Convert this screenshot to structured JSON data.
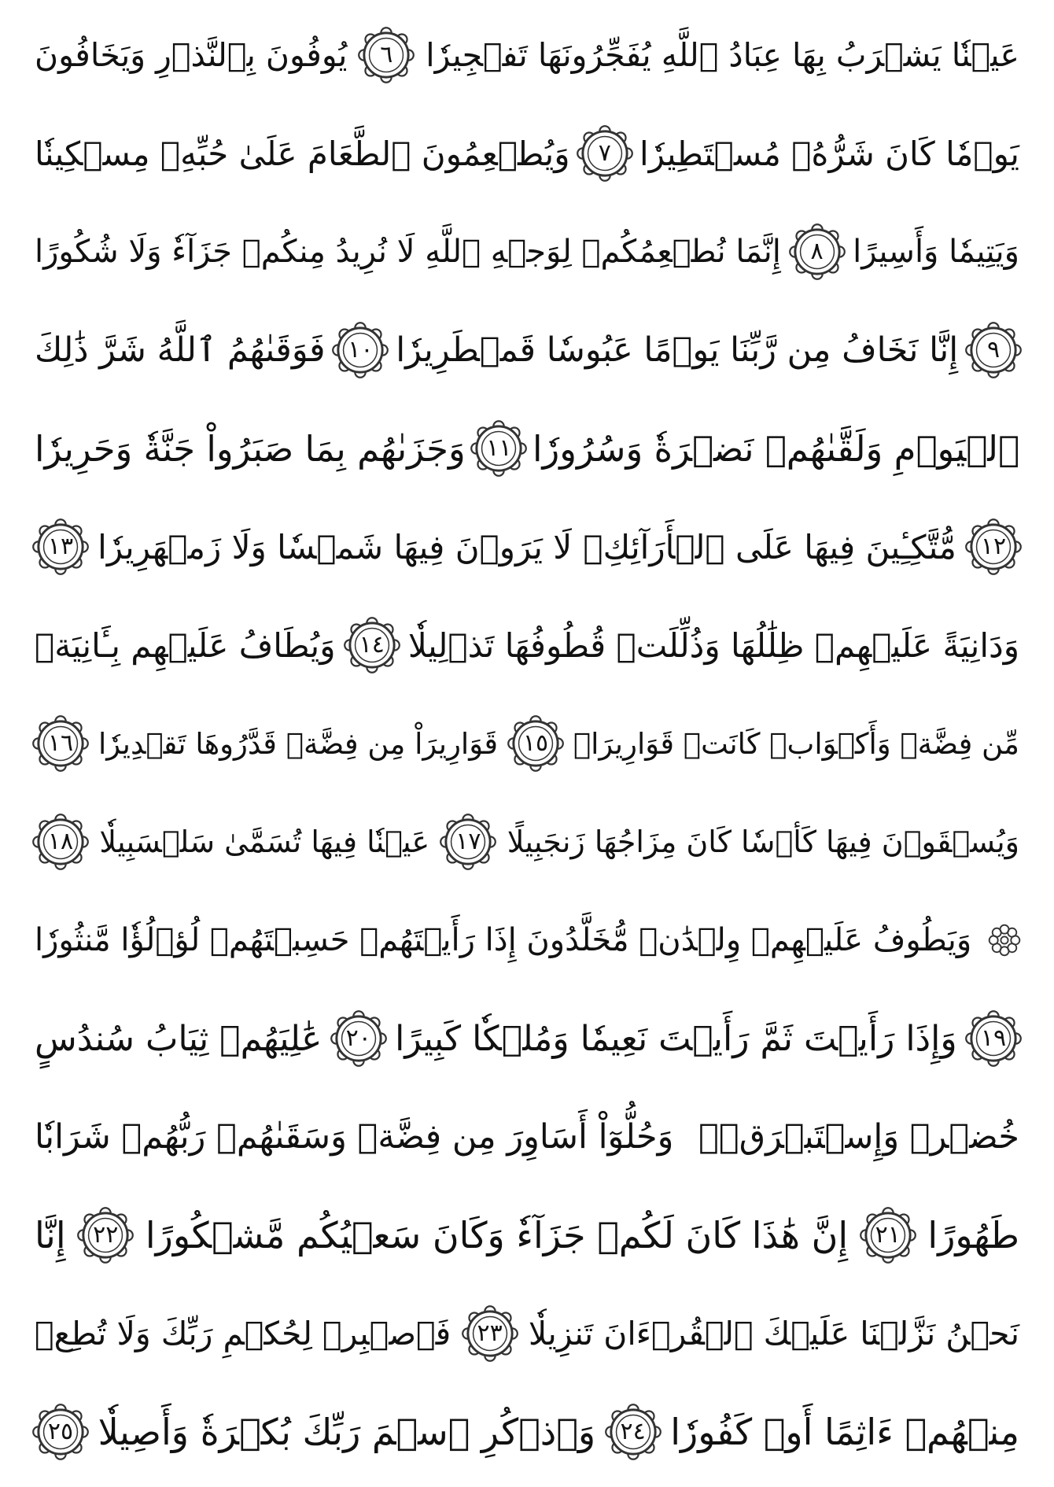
{
  "lines": [
    {
      "segments": [
        {
          "text": "عَيۡنٗا يَشۡرَبُ بِهَا عِبَادُ ٱللَّهِ يُفَجِّرُونَهَا تَفۡجِيرٗا"
        },
        {
          "ayah": "٦"
        },
        {
          "text": "يُوفُونَ بِٱلنَّذۡرِ وَيَخَافُونَ"
        }
      ]
    },
    {
      "segments": [
        {
          "text": "يَوۡمٗا كَانَ شَرُّهُۥ مُسۡتَطِيرٗا"
        },
        {
          "ayah": "٧"
        },
        {
          "text": "وَيُطۡعِمُونَ ٱلطَّعَامَ عَلَىٰ حُبِّهِۦ مِسۡكِينٗا"
        }
      ]
    },
    {
      "segments": [
        {
          "text": "وَيَتِيمٗا وَأَسِيرًا"
        },
        {
          "ayah": "٨"
        },
        {
          "text": "إِنَّمَا نُطۡعِمُكُمۡ لِوَجۡهِ ٱللَّهِ لَا نُرِيدُ مِنكُمۡ جَزَآءٗ وَلَا شُكُورًا"
        }
      ]
    },
    {
      "segments": [
        {
          "ayah": "٩"
        },
        {
          "text": "إِنَّا نَخَافُ مِن رَّبِّنَا يَوۡمًا عَبُوسٗا قَمۡطَرِيرٗا"
        },
        {
          "ayah": "١٠"
        },
        {
          "text": "فَوَقَىٰهُمُ ٱللَّهُ شَرَّ ذَٰلِكَ"
        }
      ]
    },
    {
      "segments": [
        {
          "text": "ٱلۡيَوۡمِ وَلَقَّىٰهُمۡ نَضۡرَةٗ وَسُرُورٗا"
        },
        {
          "ayah": "١١"
        },
        {
          "text": "وَجَزَىٰهُم بِمَا صَبَرُواْ جَنَّةٗ وَحَرِيرٗا"
        }
      ]
    },
    {
      "segments": [
        {
          "ayah": "١٢"
        },
        {
          "text": "مُّتَّكِـِٔينَ فِيهَا عَلَى ٱلۡأَرَآئِكِۖ"
        },
        {
          "text": "لَا يَرَوۡنَ فِيهَا شَمۡسٗا وَلَا زَمۡهَرِيرٗا"
        },
        {
          "ayah": "١٣"
        }
      ]
    },
    {
      "segments": [
        {
          "text": "وَدَانِيَةً عَلَيۡهِمۡ ظِلَٰلُهَا وَذُلِّلَتۡ قُطُوفُهَا تَذۡلِيلٗا"
        },
        {
          "ayah": "١٤"
        },
        {
          "text": "وَيُطَافُ عَلَيۡهِم بِـَٔانِيَةٖ"
        }
      ]
    },
    {
      "segments": [
        {
          "text": "مِّن فِضَّةٖ وَأَكۡوَابٖ كَانَتۡ قَوَارِيرَا۠"
        },
        {
          "ayah": "١٥"
        },
        {
          "text": "قَوَارِيرَاْ مِن فِضَّةٖ قَدَّرُوهَا تَقۡدِيرٗا"
        },
        {
          "ayah": "١٦"
        }
      ]
    },
    {
      "segments": [
        {
          "text": "وَيُسۡقَوۡنَ فِيهَا كَأۡسٗا كَانَ مِزَاجُهَا زَنجَبِيلًا"
        },
        {
          "ayah": "١٧"
        },
        {
          "text": "عَيۡنٗا فِيهَا تُسَمَّىٰ سَلۡسَبِيلٗا"
        },
        {
          "ayah": "١٨"
        }
      ]
    },
    {
      "segments": [
        {
          "hizb": true
        },
        {
          "text": "وَيَطُوفُ عَلَيۡهِمۡ وِلۡدَٰنٞ مُّخَلَّدُونَ إِذَا رَأَيۡتَهُمۡ حَسِبۡتَهُمۡ لُؤۡلُؤٗا مَّنثُورٗا"
        }
      ]
    },
    {
      "segments": [
        {
          "ayah": "١٩"
        },
        {
          "text": "وَإِذَا رَأَيۡتَ ثَمَّ رَأَيۡتَ نَعِيمٗا وَمُلۡكٗا كَبِيرًا"
        },
        {
          "ayah": "٢٠"
        },
        {
          "text": "عَٰلِيَهُمۡ ثِيَابُ سُندُسٍ"
        }
      ]
    },
    {
      "segments": [
        {
          "text": "خُضۡرٞ وَإِسۡتَبۡرَقٞۖ"
        },
        {
          "text": "وَحُلُّوٓاْ أَسَاوِرَ مِن فِضَّةٖ وَسَقَىٰهُمۡ رَبُّهُمۡ شَرَابٗا"
        }
      ]
    },
    {
      "segments": [
        {
          "text": "طَهُورًا"
        },
        {
          "ayah": "٢١"
        },
        {
          "text": "إِنَّ هَٰذَا كَانَ لَكُمۡ جَزَآءٗ وَكَانَ سَعۡيُكُم مَّشۡكُورًا"
        },
        {
          "ayah": "٢٢"
        },
        {
          "text": "إِنَّا"
        }
      ]
    },
    {
      "segments": [
        {
          "text": "نَحۡنُ نَزَّلۡنَا عَلَيۡكَ ٱلۡقُرۡءَانَ تَنزِيلٗا"
        },
        {
          "ayah": "٢٣"
        },
        {
          "text": "فَٱصۡبِرۡ لِحُكۡمِ رَبِّكَ وَلَا تُطِعۡ"
        }
      ]
    },
    {
      "segments": [
        {
          "text": "مِنۡهُمۡ ءَاثِمًا أَوۡ كَفُورٗا"
        },
        {
          "ayah": "٢٤"
        },
        {
          "text": "وَٱذۡكُرِ ٱسۡمَ رَبِّكَ بُكۡرَةٗ وَأَصِيلٗا"
        },
        {
          "ayah": "٢٥"
        }
      ]
    }
  ]
}
